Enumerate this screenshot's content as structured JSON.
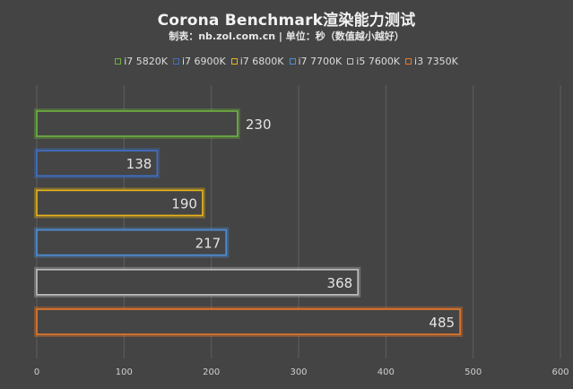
{
  "chart_data": {
    "type": "bar",
    "orientation": "horizontal",
    "title": "Corona Benchmark渲染能力测试",
    "subtitle": "制表：nb.zol.com.cn | 单位：秒（数值越小越好）",
    "categories": [
      "i7 5820K",
      "i7 6900K",
      "i7 6800K",
      "i7 7700K",
      "i5 7600K",
      "i3 7350K"
    ],
    "series": [
      {
        "name": "i7 5820K",
        "value": 230,
        "color": "#6db33f"
      },
      {
        "name": "i7 6900K",
        "value": 138,
        "color": "#3f6fc6"
      },
      {
        "name": "i7 6800K",
        "value": 190,
        "color": "#e8b418"
      },
      {
        "name": "i7 7700K",
        "value": 217,
        "color": "#4d8fd6"
      },
      {
        "name": "i5 7600K",
        "value": 368,
        "color": "#bfbfbf"
      },
      {
        "name": "i3 7350K",
        "value": 485,
        "color": "#e8782a"
      }
    ],
    "xlim": [
      0,
      600
    ],
    "xticks": [
      0,
      100,
      200,
      300,
      400,
      500,
      600
    ],
    "xlabel": "",
    "ylabel": "",
    "grid": true,
    "legend_position": "top"
  }
}
